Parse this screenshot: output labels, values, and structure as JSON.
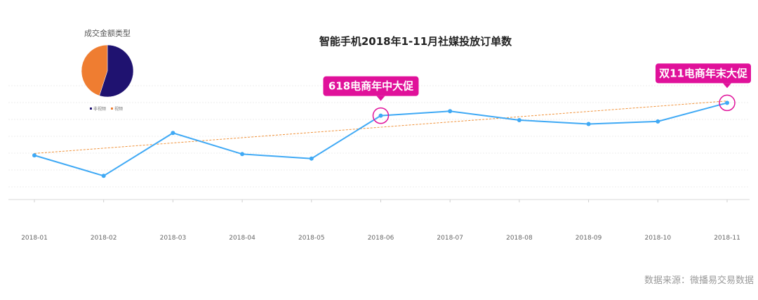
{
  "chart_data": [
    {
      "type": "line",
      "title": "智能手机2018年1-11月社媒投放订单数",
      "categories": [
        "2018-01",
        "2018-02",
        "2018-03",
        "2018-04",
        "2018-05",
        "2018-06",
        "2018-07",
        "2018-08",
        "2018-09",
        "2018-10",
        "2018-11"
      ],
      "series": [
        {
          "values": [
            39,
            7,
            74,
            41,
            34,
            101,
            108,
            94,
            88,
            92,
            121
          ],
          "color": "#3fa9f5"
        }
      ],
      "trendline": {
        "from": 42,
        "to": 124,
        "color": "#f0923a",
        "style": "dashed"
      },
      "ylim": [
        -30,
        150
      ],
      "grid": true,
      "annotations": [
        {
          "text": "618电商年中大促",
          "category": "2018-06",
          "color": "#e0119a"
        },
        {
          "text": "双11电商年末大促",
          "category": "2018-11",
          "color": "#e0119a"
        }
      ]
    },
    {
      "type": "pie",
      "title": "成交金额类型",
      "slices": [
        {
          "label": "非视频",
          "value": 55,
          "color": "#1f1270"
        },
        {
          "label": "视频",
          "value": 45,
          "color": "#ef7d31"
        }
      ],
      "legend": "bottom"
    }
  ],
  "source_note": "数据来源：微播易交易数据"
}
